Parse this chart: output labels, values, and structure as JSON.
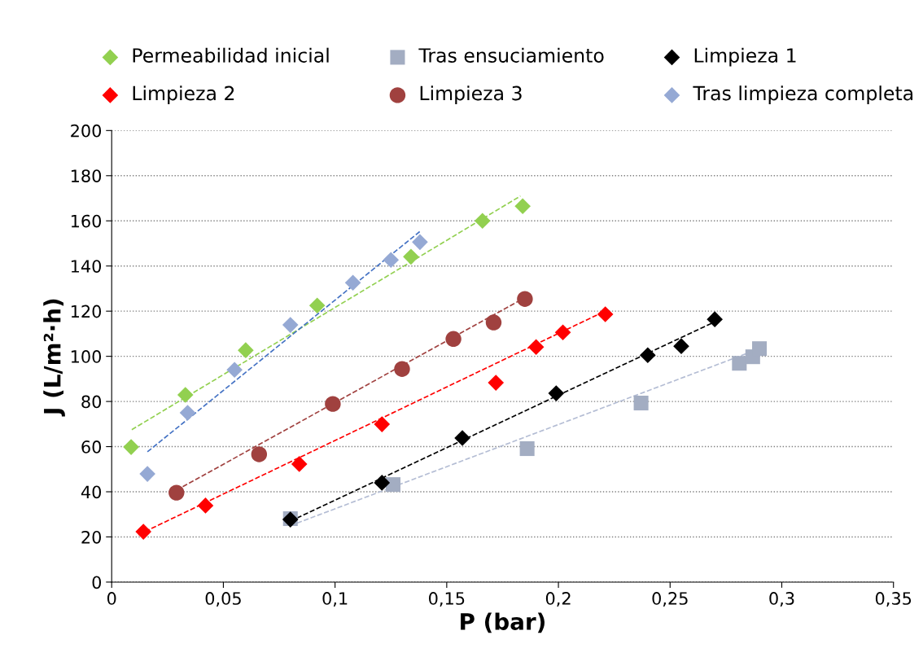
{
  "chart_data": {
    "type": "scatter",
    "xlabel": "P (bar)",
    "ylabel": "J (L/m²·h)",
    "xlim": [
      0,
      0.35
    ],
    "ylim": [
      0,
      200
    ],
    "xticks": [
      {
        "value": 0,
        "label": "0"
      },
      {
        "value": 0.05,
        "label": "0,05"
      },
      {
        "value": 0.1,
        "label": "0,1"
      },
      {
        "value": 0.15,
        "label": "0,15"
      },
      {
        "value": 0.2,
        "label": "0,2"
      },
      {
        "value": 0.25,
        "label": "0,25"
      },
      {
        "value": 0.3,
        "label": "0,3"
      },
      {
        "value": 0.35,
        "label": "0,35"
      }
    ],
    "yticks": [
      0,
      20,
      40,
      60,
      80,
      100,
      120,
      140,
      160,
      180,
      200
    ],
    "grid": "y",
    "legend": "top",
    "series": [
      {
        "name": "Permeabilidad inicial",
        "marker": "diamond",
        "color": "#92d050",
        "x": [
          0.0087,
          0.033,
          0.06,
          0.092,
          0.134,
          0.166,
          0.184
        ],
        "values": [
          59.8,
          82.9,
          102.7,
          122.5,
          144.1,
          160,
          166.5
        ]
      },
      {
        "name": "Tras ensuciamiento",
        "marker": "square",
        "color": "#a3adc2",
        "x": [
          0.08,
          0.126,
          0.186,
          0.237,
          0.281,
          0.287,
          0.29
        ],
        "values": [
          28.1,
          43.2,
          59.1,
          79.3,
          96.9,
          99.8,
          103.4
        ]
      },
      {
        "name": "Limpieza 1",
        "marker": "diamond",
        "color": "#000000",
        "x": [
          0.08,
          0.121,
          0.157,
          0.199,
          0.24,
          0.255,
          0.27
        ],
        "values": [
          27.7,
          44,
          63.8,
          83.6,
          100.5,
          104.5,
          116.4
        ]
      },
      {
        "name": "Limpieza 2",
        "marker": "diamond",
        "color": "#ff0000",
        "x": [
          0.0142,
          0.042,
          0.084,
          0.121,
          0.172,
          0.19,
          0.202,
          0.221
        ],
        "values": [
          22.3,
          33.9,
          52.3,
          69.9,
          88.3,
          104.1,
          110.6,
          118.6
        ]
      },
      {
        "name": "Limpieza 3",
        "marker": "circle",
        "color": "#a0413f",
        "x": [
          0.029,
          0.066,
          0.099,
          0.13,
          0.153,
          0.171,
          0.185
        ],
        "values": [
          39.6,
          56.6,
          78.9,
          94.4,
          107.7,
          115,
          125.4
        ]
      },
      {
        "name": "Tras limpieza completa",
        "marker": "diamond",
        "color": "#95a9d4",
        "x": [
          0.016,
          0.034,
          0.055,
          0.08,
          0.108,
          0.125,
          0.138
        ],
        "values": [
          47.9,
          75,
          94,
          113.9,
          132.6,
          142.7,
          150.6
        ]
      },
      {
        "type": "line",
        "line_style": "dashed",
        "marker": "none",
        "color": "#92d050",
        "x": [
          0.009,
          0.183
        ],
        "values": [
          67.5,
          171
        ]
      },
      {
        "type": "line",
        "line_style": "dashed",
        "marker": "none",
        "color": "#b4bdd4",
        "x": [
          0.08,
          0.289
        ],
        "values": [
          25,
          103
        ]
      },
      {
        "type": "line",
        "line_style": "dashed",
        "marker": "none",
        "color": "#000000",
        "x": [
          0.08,
          0.27
        ],
        "values": [
          27,
          115.3
        ]
      },
      {
        "type": "line",
        "line_style": "dashed",
        "marker": "none",
        "color": "#ff0000",
        "x": [
          0.012,
          0.22
        ],
        "values": [
          21,
          119.6
        ]
      },
      {
        "type": "line",
        "line_style": "dashed",
        "marker": "none",
        "color": "#a0413f",
        "x": [
          0.029,
          0.185
        ],
        "values": [
          40.7,
          126
        ]
      },
      {
        "type": "line",
        "line_style": "dashed",
        "marker": "none",
        "color": "#4472c4",
        "x": [
          0.016,
          0.138
        ],
        "values": [
          57.7,
          155.3
        ]
      }
    ]
  }
}
